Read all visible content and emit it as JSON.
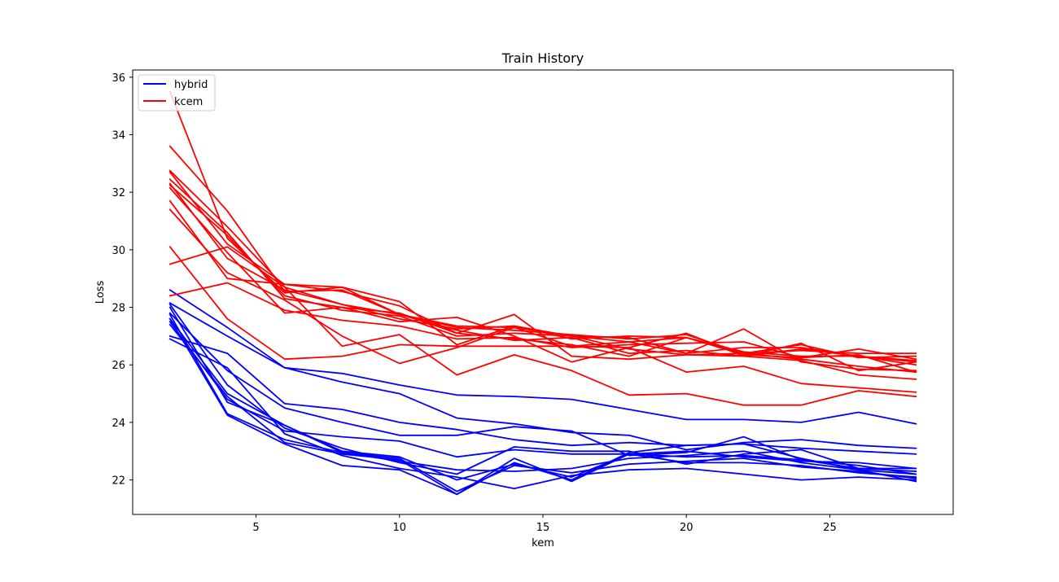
{
  "chart_data": {
    "type": "line",
    "title": "Train History",
    "xlabel": "kem",
    "ylabel": "Loss",
    "xlim": [
      0.7,
      29.3
    ],
    "ylim": [
      20.8,
      36.25
    ],
    "x": [
      2,
      4,
      6,
      8,
      10,
      12,
      14,
      16,
      18,
      20,
      22,
      24,
      26,
      28
    ],
    "xticks": [
      5,
      10,
      15,
      20,
      25
    ],
    "yticks": [
      22,
      24,
      26,
      28,
      30,
      32,
      34,
      36
    ],
    "grid": false,
    "legend": {
      "position": "top-left",
      "entries": [
        "hybrid",
        "kcem"
      ]
    },
    "colors": {
      "hybrid": "#0000ff",
      "kcem": "#ff0000"
    },
    "series": [
      {
        "name": "hybrid",
        "values": [
          28.6,
          27.3,
          25.9,
          25.7,
          25.3,
          24.95,
          24.9,
          24.8,
          24.45,
          24.1,
          24.1,
          24.0,
          24.35,
          23.95
        ]
      },
      {
        "name": "hybrid",
        "values": [
          28.15,
          27.0,
          25.9,
          25.4,
          25.0,
          24.15,
          23.95,
          23.65,
          23.55,
          23.05,
          23.3,
          23.4,
          23.2,
          23.1
        ]
      },
      {
        "name": "hybrid",
        "values": [
          27.0,
          26.4,
          24.65,
          24.45,
          24.0,
          23.75,
          23.4,
          23.2,
          23.3,
          23.2,
          23.25,
          23.1,
          23.0,
          22.9
        ]
      },
      {
        "name": "hybrid",
        "values": [
          27.8,
          25.8,
          24.5,
          24.0,
          23.55,
          23.55,
          23.85,
          23.7,
          22.85,
          22.95,
          23.5,
          22.7,
          22.4,
          22.4
        ]
      },
      {
        "name": "hybrid",
        "values": [
          27.6,
          25.0,
          23.9,
          23.0,
          22.8,
          22.0,
          22.55,
          22.1,
          22.9,
          23.0,
          22.8,
          22.65,
          22.6,
          22.4
        ]
      },
      {
        "name": "hybrid",
        "values": [
          27.5,
          24.8,
          23.7,
          23.5,
          23.35,
          22.8,
          23.05,
          22.9,
          22.9,
          22.8,
          22.85,
          22.7,
          22.5,
          22.2
        ]
      },
      {
        "name": "hybrid",
        "values": [
          28.1,
          25.3,
          23.8,
          23.1,
          22.6,
          22.2,
          23.15,
          23.0,
          23.0,
          22.55,
          22.9,
          23.05,
          22.4,
          22.3
        ]
      },
      {
        "name": "hybrid",
        "values": [
          27.75,
          24.3,
          23.4,
          22.95,
          22.65,
          22.35,
          22.3,
          22.4,
          22.75,
          22.85,
          23.0,
          22.6,
          22.35,
          22.2
        ]
      },
      {
        "name": "hybrid",
        "values": [
          27.6,
          24.25,
          23.25,
          22.5,
          22.35,
          21.5,
          22.75,
          21.95,
          22.9,
          22.6,
          22.6,
          22.5,
          22.25,
          22.1
        ]
      },
      {
        "name": "hybrid",
        "values": [
          28.0,
          24.7,
          23.9,
          22.95,
          22.75,
          21.6,
          22.5,
          22.25,
          22.55,
          22.65,
          22.75,
          22.45,
          22.3,
          22.05
        ]
      },
      {
        "name": "hybrid",
        "values": [
          26.9,
          25.9,
          23.6,
          22.85,
          22.4,
          22.1,
          21.7,
          22.15,
          22.35,
          22.4,
          22.2,
          22.0,
          22.1,
          22.0
        ]
      },
      {
        "name": "hybrid",
        "values": [
          27.4,
          24.9,
          23.3,
          22.9,
          22.7,
          21.5,
          22.6,
          22.0,
          22.95,
          23.2,
          23.25,
          22.75,
          22.35,
          21.95
        ]
      },
      {
        "name": "kcem",
        "values": [
          35.5,
          30.4,
          28.5,
          28.7,
          28.2,
          26.7,
          27.35,
          26.9,
          27.0,
          26.95,
          26.4,
          26.7,
          26.25,
          26.3
        ]
      },
      {
        "name": "kcem",
        "values": [
          33.6,
          31.35,
          28.55,
          28.6,
          27.75,
          27.3,
          27.2,
          27.05,
          26.9,
          27.05,
          26.4,
          26.5,
          26.4,
          26.4
        ]
      },
      {
        "name": "kcem",
        "values": [
          32.75,
          30.8,
          28.7,
          28.1,
          27.6,
          27.25,
          27.35,
          27.0,
          26.8,
          26.95,
          26.45,
          26.3,
          26.3,
          26.15
        ]
      },
      {
        "name": "kcem",
        "values": [
          32.7,
          30.2,
          28.8,
          28.7,
          27.75,
          27.2,
          26.85,
          26.95,
          26.4,
          26.5,
          26.3,
          26.55,
          26.3,
          26.1
        ]
      },
      {
        "name": "kcem",
        "values": [
          32.45,
          30.6,
          28.3,
          28.0,
          27.8,
          27.1,
          26.9,
          26.7,
          26.3,
          26.95,
          26.35,
          26.25,
          26.55,
          26.2
        ]
      },
      {
        "name": "kcem",
        "values": [
          32.3,
          29.7,
          28.6,
          28.1,
          27.75,
          27.35,
          27.3,
          26.65,
          26.8,
          26.4,
          26.6,
          26.6,
          26.3,
          26.0
        ]
      },
      {
        "name": "kcem",
        "values": [
          32.25,
          30.5,
          28.4,
          27.9,
          27.7,
          27.0,
          27.1,
          27.0,
          26.95,
          26.4,
          27.25,
          26.1,
          25.85,
          25.8
        ]
      },
      {
        "name": "kcem",
        "values": [
          32.15,
          29.9,
          27.8,
          28.0,
          27.5,
          27.65,
          27.0,
          26.1,
          26.6,
          27.1,
          26.3,
          26.75,
          25.8,
          26.1
        ]
      },
      {
        "name": "kcem",
        "values": [
          31.7,
          29.0,
          28.8,
          28.55,
          28.05,
          27.1,
          27.75,
          26.3,
          26.2,
          26.35,
          26.4,
          26.2,
          25.95,
          25.75
        ]
      },
      {
        "name": "kcem",
        "values": [
          31.4,
          29.2,
          28.25,
          27.0,
          26.05,
          26.6,
          27.3,
          27.0,
          26.55,
          26.35,
          26.3,
          26.15,
          25.65,
          25.5
        ]
      },
      {
        "name": "kcem",
        "values": [
          30.1,
          27.6,
          26.2,
          26.3,
          26.7,
          26.65,
          26.65,
          26.65,
          26.6,
          25.75,
          25.95,
          25.35,
          25.2,
          25.05
        ]
      },
      {
        "name": "kcem",
        "values": [
          29.5,
          30.1,
          28.7,
          26.65,
          27.05,
          25.65,
          26.35,
          25.8,
          24.95,
          25.0,
          24.6,
          24.6,
          25.1,
          24.9
        ]
      },
      {
        "name": "kcem",
        "values": [
          28.4,
          28.85,
          27.9,
          27.55,
          27.35,
          26.9,
          26.95,
          26.6,
          26.7,
          26.75,
          26.8,
          26.25,
          26.35,
          25.75
        ]
      }
    ]
  }
}
